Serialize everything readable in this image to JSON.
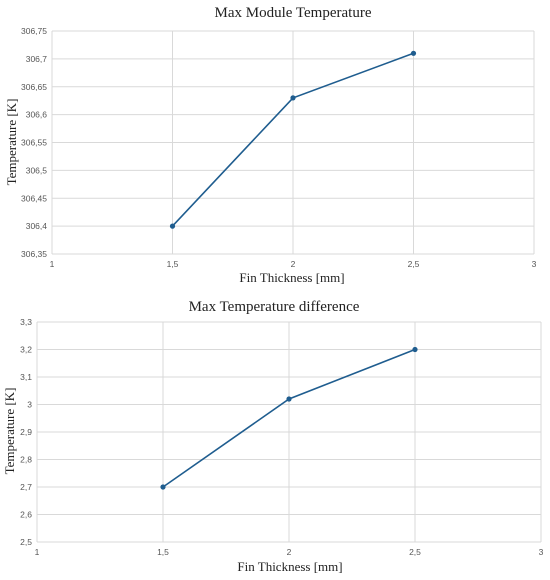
{
  "colors": {
    "series": "#1f5d8f",
    "grid": "#d9d9d9"
  },
  "chart_data": [
    {
      "type": "line",
      "title": "Max Module Temperature",
      "xlabel": "Fin Thickness [mm]",
      "ylabel": "Temperature [K]",
      "xlim": [
        1,
        3
      ],
      "ylim": [
        306.35,
        306.75
      ],
      "x_ticks": [
        1,
        1.5,
        2,
        2.5,
        3
      ],
      "x_tick_labels": [
        "1",
        "1,5",
        "2",
        "2,5",
        "3"
      ],
      "y_ticks": [
        306.35,
        306.4,
        306.45,
        306.5,
        306.55,
        306.6,
        306.65,
        306.7,
        306.75
      ],
      "y_tick_labels": [
        "306,35",
        "306,4",
        "306,45",
        "306,5",
        "306,55",
        "306,6",
        "306,65",
        "306,7",
        "306,75"
      ],
      "grid": true,
      "legend": false,
      "series": [
        {
          "x": [
            1.5,
            2,
            2.5
          ],
          "values": [
            306.4,
            306.63,
            306.71
          ]
        }
      ]
    },
    {
      "type": "line",
      "title": "Max Temperature difference",
      "xlabel": "Fin Thickness [mm]",
      "ylabel": "Temperature [K]",
      "xlim": [
        1,
        3
      ],
      "ylim": [
        2.5,
        3.3
      ],
      "x_ticks": [
        1,
        1.5,
        2,
        2.5,
        3
      ],
      "x_tick_labels": [
        "1",
        "1,5",
        "2",
        "2,5",
        "3"
      ],
      "y_ticks": [
        2.5,
        2.6,
        2.7,
        2.8,
        2.9,
        3.0,
        3.1,
        3.2,
        3.3
      ],
      "y_tick_labels": [
        "2,5",
        "2,6",
        "2,7",
        "2,8",
        "2,9",
        "3",
        "3,1",
        "3,2",
        "3,3"
      ],
      "grid": true,
      "legend": false,
      "series": [
        {
          "x": [
            1.5,
            2,
            2.5
          ],
          "values": [
            2.7,
            3.02,
            3.2
          ]
        }
      ]
    }
  ]
}
